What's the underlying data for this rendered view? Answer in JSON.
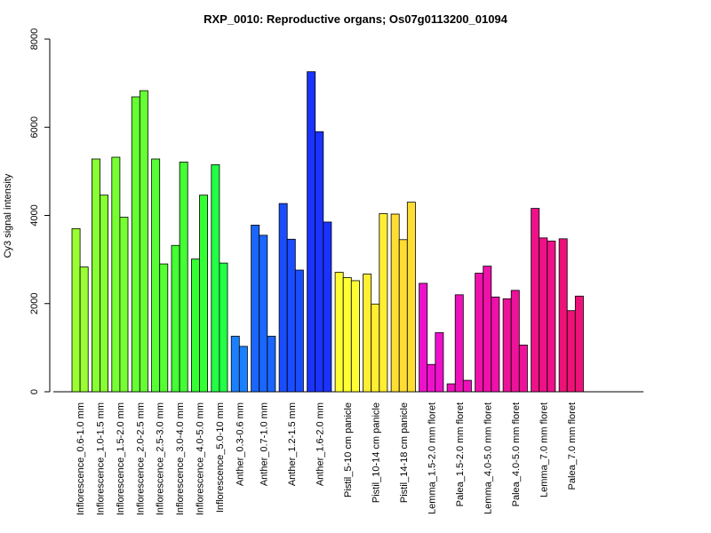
{
  "chart_data": {
    "type": "bar",
    "title": "RXP_0010: Reproductive organs; Os07g0113200_01094",
    "xlabel": "",
    "ylabel": "Cy3 signal intensity",
    "ylim": [
      0,
      8000
    ],
    "yticks": [
      0,
      2000,
      4000,
      6000,
      8000
    ],
    "categories": [
      "Inflorescence_0.6-1.0 mm",
      "Inflorescence_1.0-1.5 mm",
      "Inflorescence_1.5-2.0 mm",
      "Inflorescence_2.0-2.5 mm",
      "Inflorescence_2.5-3.0 mm",
      "Inflorescence_3.0-4.0 mm",
      "Inflorescence_4.0-5.0 mm",
      "Inflorescence_5.0-10 mm",
      "Anther_0.3-0.6 mm",
      "Anther_0.7-1.0 mm",
      "Anther_1.2-1.5 mm",
      "Anther_1.6-2.0 mm",
      "Pistil_5-10 cm panicle",
      "Pistil_10-14 cm panicle",
      "Pistil_14-18 cm panicle",
      "Lemma_1.5-2.0 mm floret",
      "Palea_1.5-2.0 mm floret",
      "Lemma_4.0-5.0 mm floret",
      "Palea_4.0-5.0 mm floret",
      "Lemma_7.0 mm floret",
      "Palea_7.0 mm floret"
    ],
    "groups": [
      {
        "color": "#99ff33",
        "values": [
          3700,
          2830
        ]
      },
      {
        "color": "#88ff33",
        "values": [
          5280,
          4460
        ]
      },
      {
        "color": "#77ff33",
        "values": [
          5320,
          3960
        ]
      },
      {
        "color": "#66ff33",
        "values": [
          6690,
          6830
        ]
      },
      {
        "color": "#55ff33",
        "values": [
          5280,
          2900
        ]
      },
      {
        "color": "#44ff33",
        "values": [
          3320,
          5210
        ]
      },
      {
        "color": "#33ff33",
        "values": [
          3010,
          4460
        ]
      },
      {
        "color": "#22ff44",
        "values": [
          5150,
          2920
        ]
      },
      {
        "color": "#1a80ff",
        "values": [
          1260,
          1030
        ]
      },
      {
        "color": "#1a66ff",
        "values": [
          3780,
          3550,
          1260
        ]
      },
      {
        "color": "#1a4dff",
        "values": [
          4270,
          3460,
          2760
        ]
      },
      {
        "color": "#1a33ff",
        "values": [
          7260,
          5900,
          3850
        ]
      },
      {
        "color": "#ffff33",
        "values": [
          2710,
          2590,
          2520
        ]
      },
      {
        "color": "#ffee33",
        "values": [
          2670,
          1990,
          4040
        ]
      },
      {
        "color": "#ffdd33",
        "values": [
          4030,
          3450,
          4300
        ]
      },
      {
        "color": "#ee11cc",
        "values": [
          2460,
          620,
          1340
        ]
      },
      {
        "color": "#ee11bb",
        "values": [
          180,
          2200,
          260
        ]
      },
      {
        "color": "#ee11aa",
        "values": [
          2690,
          2850,
          2150
        ]
      },
      {
        "color": "#ee1199",
        "values": [
          2110,
          2300,
          1060
        ]
      },
      {
        "color": "#ee1188",
        "values": [
          4160,
          3490,
          3420
        ]
      },
      {
        "color": "#ee1177",
        "values": [
          3470,
          1840,
          2170
        ]
      }
    ],
    "grid": false,
    "legend": "none"
  }
}
